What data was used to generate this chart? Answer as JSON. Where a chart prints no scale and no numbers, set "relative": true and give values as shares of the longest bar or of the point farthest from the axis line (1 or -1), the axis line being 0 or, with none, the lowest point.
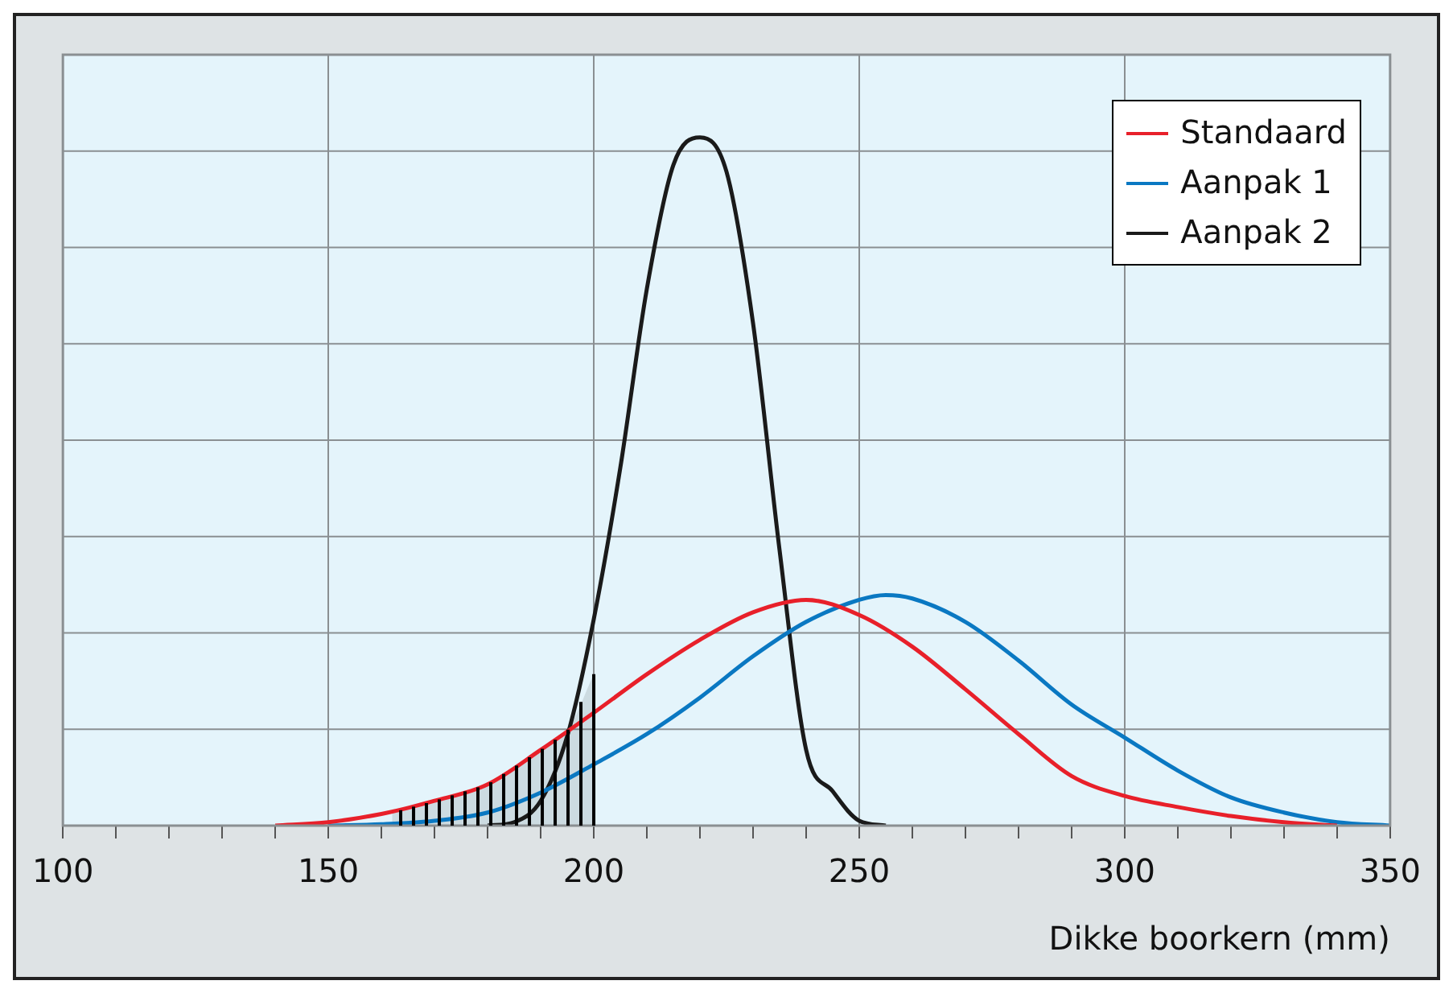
{
  "chart_data": {
    "type": "line",
    "xlabel": "Dikke boorkern (mm)",
    "relative": true,
    "grid": true,
    "legend": "top right",
    "marker": "none",
    "line_style": "solid",
    "xlim": [
      100,
      350
    ],
    "xticks": [
      100,
      {
        "value": 110,
        "label": null
      },
      {
        "value": 120,
        "label": null
      },
      {
        "value": 130,
        "label": null
      },
      {
        "value": 140,
        "label": null
      },
      150,
      {
        "value": 160,
        "label": null
      },
      {
        "value": 170,
        "label": null
      },
      {
        "value": 180,
        "label": null
      },
      {
        "value": 190,
        "label": null
      },
      200,
      {
        "value": 210,
        "label": null
      },
      {
        "value": 220,
        "label": null
      },
      {
        "value": 230,
        "label": null
      },
      {
        "value": 240,
        "label": null
      },
      250,
      {
        "value": 260,
        "label": null
      },
      {
        "value": 270,
        "label": null
      },
      {
        "value": 280,
        "label": null
      },
      {
        "value": 290,
        "label": null
      },
      300,
      {
        "value": 310,
        "label": null
      },
      {
        "value": 320,
        "label": null
      },
      {
        "value": 330,
        "label": null
      },
      {
        "value": 340,
        "label": null
      },
      350
    ],
    "series": [
      {
        "name": "Standaard",
        "color": "#e8202a",
        "x": [
          140,
          150,
          160,
          170,
          180,
          190,
          200,
          210,
          220,
          230,
          240,
          250,
          260,
          270,
          280,
          290,
          300,
          310,
          320,
          330,
          340
        ],
        "values": [
          0,
          0.005,
          0.017,
          0.036,
          0.06,
          0.11,
          0.164,
          0.22,
          0.27,
          0.31,
          0.328,
          0.306,
          0.26,
          0.198,
          0.133,
          0.072,
          0.043,
          0.027,
          0.014,
          0.005,
          0
        ]
      },
      {
        "name": "Aanpak 1",
        "color": "#0a78c2",
        "x": [
          150,
          160,
          170,
          180,
          190,
          200,
          210,
          220,
          230,
          240,
          250,
          255,
          260,
          270,
          280,
          290,
          300,
          310,
          320,
          330,
          340,
          350
        ],
        "values": [
          0,
          0.002,
          0.007,
          0.019,
          0.048,
          0.089,
          0.133,
          0.186,
          0.246,
          0.296,
          0.328,
          0.335,
          0.33,
          0.296,
          0.24,
          0.176,
          0.128,
          0.08,
          0.041,
          0.019,
          0.005,
          0
        ]
      },
      {
        "name": "Aanpak 2",
        "color": "#1a1a1a",
        "x": [
          180,
          185,
          190,
          195,
          200,
          205,
          210,
          215,
          220,
          225,
          230,
          235,
          240,
          245,
          250,
          255
        ],
        "values": [
          0,
          0.005,
          0.036,
          0.13,
          0.3,
          0.52,
          0.78,
          0.96,
          1,
          0.95,
          0.73,
          0.4,
          0.11,
          0.05,
          0.007,
          0
        ]
      },
      {
        "type": "area",
        "color": "#000000",
        "x": [
          162,
          170,
          180,
          190,
          195,
          200
        ],
        "values": [
          0.019,
          0.036,
          0.06,
          0.11,
          0.137,
          0.22
        ]
      }
    ]
  }
}
